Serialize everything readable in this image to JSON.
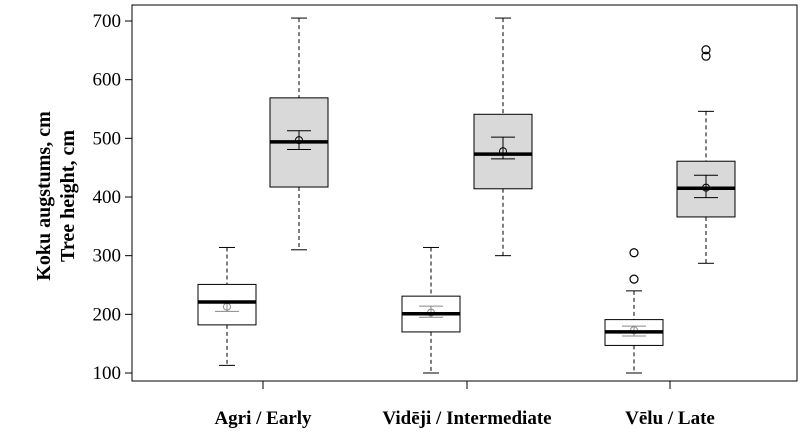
{
  "chart_data": {
    "type": "boxplot",
    "ylabel_line1": "Koku augstums, cm",
    "ylabel_line2": "Tree height, cm",
    "ylim": [
      80,
      715
    ],
    "yticks": [
      100,
      200,
      300,
      400,
      500,
      600,
      700
    ],
    "grid": false,
    "categories": [
      "Agri / Early",
      "Vidēji / Intermediate",
      "Vēlu / Late"
    ],
    "boxes": [
      {
        "category": "Agri / Early",
        "fill": "#ffffff",
        "min": 113,
        "q1": 182,
        "median": 221,
        "q3": 251,
        "max": 314,
        "mean": 213,
        "ci_low": 205,
        "ci_high": 221,
        "outliers": []
      },
      {
        "category": "Agri / Early",
        "fill": "#d9d9d9",
        "min": 310,
        "q1": 417,
        "median": 494,
        "q3": 569,
        "max": 705,
        "mean": 497,
        "ci_low": 481,
        "ci_high": 513,
        "outliers": []
      },
      {
        "category": "Vidēji / Intermediate",
        "fill": "#ffffff",
        "min": 100,
        "q1": 170,
        "median": 201,
        "q3": 231,
        "max": 314,
        "mean": 203,
        "ci_low": 195,
        "ci_high": 214,
        "outliers": []
      },
      {
        "category": "Vidēji / Intermediate",
        "fill": "#d9d9d9",
        "min": 300,
        "q1": 414,
        "median": 473,
        "q3": 541,
        "max": 705,
        "mean": 478,
        "ci_low": 465,
        "ci_high": 502,
        "outliers": []
      },
      {
        "category": "Vēlu / Late",
        "fill": "#ffffff",
        "min": 100,
        "q1": 147,
        "median": 170,
        "q3": 191,
        "max": 240,
        "mean": 173,
        "ci_low": 163,
        "ci_high": 180,
        "outliers": [
          260,
          305
        ]
      },
      {
        "category": "Vēlu / Late",
        "fill": "#d9d9d9",
        "min": 287,
        "q1": 366,
        "median": 415,
        "q3": 461,
        "max": 546,
        "mean": 416,
        "ci_low": 399,
        "ci_high": 437,
        "outliers": [
          640,
          651
        ]
      }
    ],
    "colors": {
      "axis": "#000000",
      "whisker": "#000000",
      "ci": "#000000",
      "ci_light_box": "#888888",
      "dark_fill": "#d9d9d9",
      "light_fill": "#ffffff"
    }
  }
}
